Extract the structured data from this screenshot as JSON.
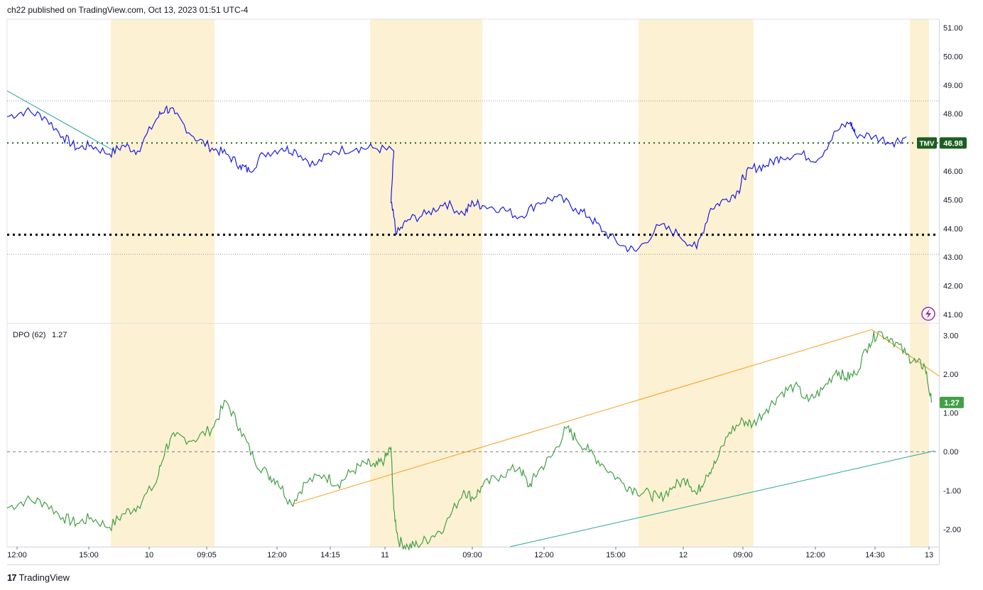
{
  "header": {
    "text": "ch22 published on TradingView.com, Oct 13, 2023 01:51 UTC-4"
  },
  "brand": {
    "logo": "17",
    "name": "TradingView"
  },
  "colors": {
    "price_line": "#1c1ce0",
    "dpo_line": "#43a047",
    "session_band": "#fdf1d3",
    "support_dotted": "#000000",
    "tmv_dotted": "#1b5e20",
    "trend_orange": "#f59c1a",
    "trend_teal": "#26a69a",
    "tmv_badge": "#1b5e20",
    "dpo_badge": "#43a047",
    "bolt_icon": "#9c27b0"
  },
  "icons": {
    "alert": "lightning-bolt-icon"
  },
  "chart_data": [
    {
      "type": "line",
      "panel": "price",
      "ylim": [
        40.7,
        51.3
      ],
      "y_ticks": [
        "51.00",
        "50.00",
        "49.00",
        "48.00",
        "47.00",
        "46.00",
        "45.00",
        "44.00",
        "43.00",
        "42.00",
        "41.00"
      ],
      "x_ticks": [
        "12:00",
        "15:00",
        "10",
        "09:05",
        "12:00",
        "14:15",
        "11",
        "09:00",
        "12:00",
        "15:00",
        "12",
        "09:00",
        "12:00",
        "14:30",
        "13"
      ],
      "grid": false,
      "horizontal_levels": [
        {
          "label": "TMV",
          "value": 46.98,
          "value_label": "46.98",
          "style": "dotted"
        },
        {
          "label": "",
          "value": 43.78,
          "style": "dotted"
        },
        {
          "label": "",
          "value": 48.45,
          "style": "faint-dotted"
        },
        {
          "label": "",
          "value": 43.1,
          "style": "faint-dotted"
        }
      ],
      "trendlines": [
        {
          "color": "teal",
          "x": [
            0,
            0.115
          ],
          "y": [
            48.8,
            46.7
          ]
        }
      ],
      "series": [
        {
          "points_x": [
            0,
            0.02,
            0.04,
            0.06,
            0.075,
            0.09,
            0.11,
            0.125,
            0.14,
            0.16,
            0.17,
            0.18,
            0.2,
            0.22,
            0.235,
            0.25,
            0.26,
            0.275,
            0.295,
            0.31,
            0.33,
            0.35,
            0.375,
            0.395,
            0.415,
            0.412,
            0.418,
            0.43,
            0.45,
            0.47,
            0.49,
            0.5,
            0.51,
            0.53,
            0.55,
            0.57,
            0.59,
            0.61,
            0.625,
            0.64,
            0.66,
            0.675,
            0.7,
            0.72,
            0.74,
            0.755,
            0.77,
            0.785,
            0.79,
            0.8,
            0.815,
            0.83,
            0.85,
            0.87,
            0.89,
            0.905,
            0.91,
            0.93,
            0.95,
            0.965
          ],
          "values": [
            47.9,
            48.1,
            47.9,
            47.2,
            46.8,
            46.9,
            46.6,
            46.9,
            46.7,
            47.8,
            48.2,
            48.0,
            47.2,
            46.8,
            46.6,
            46.2,
            46.0,
            46.6,
            46.8,
            46.7,
            46.2,
            46.7,
            46.8,
            46.8,
            46.7,
            44.9,
            43.8,
            44.3,
            44.5,
            44.9,
            44.5,
            44.9,
            44.8,
            44.7,
            44.4,
            44.9,
            45.1,
            44.7,
            44.4,
            43.9,
            43.4,
            43.2,
            44.1,
            43.8,
            43.3,
            44.7,
            45.0,
            45.3,
            45.8,
            46.1,
            46.2,
            46.5,
            46.6,
            46.4,
            47.4,
            47.7,
            47.3,
            47.2,
            47.0,
            47.2
          ]
        }
      ]
    },
    {
      "type": "line",
      "panel": "indicator",
      "title": "DPO (62)",
      "current_value": "1.27",
      "ylim": [
        -2.45,
        3.3
      ],
      "y_ticks": [
        "3.00",
        "2.00",
        "1.00",
        "0.00",
        "-1.00",
        "-2.00"
      ],
      "zero_line": 0,
      "trendlines": [
        {
          "color": "orange",
          "x": [
            0.307,
            0.928
          ],
          "y": [
            -1.35,
            3.15
          ]
        },
        {
          "color": "orange",
          "x": [
            0.928,
            1.0
          ],
          "y": [
            3.15,
            1.95
          ]
        },
        {
          "color": "teal",
          "x": [
            0.54,
            0.995
          ],
          "y": [
            -2.45,
            0.02
          ]
        }
      ],
      "series": [
        {
          "name": "DPO (62)",
          "points_x": [
            0,
            0.02,
            0.04,
            0.06,
            0.075,
            0.09,
            0.11,
            0.125,
            0.14,
            0.16,
            0.17,
            0.18,
            0.2,
            0.22,
            0.235,
            0.25,
            0.265,
            0.28,
            0.29,
            0.305,
            0.32,
            0.34,
            0.355,
            0.37,
            0.385,
            0.395,
            0.405,
            0.412,
            0.415,
            0.42,
            0.43,
            0.44,
            0.455,
            0.47,
            0.49,
            0.5,
            0.51,
            0.53,
            0.55,
            0.56,
            0.57,
            0.585,
            0.6,
            0.61,
            0.625,
            0.64,
            0.66,
            0.675,
            0.69,
            0.7,
            0.715,
            0.73,
            0.74,
            0.75,
            0.76,
            0.775,
            0.79,
            0.8,
            0.815,
            0.83,
            0.845,
            0.86,
            0.875,
            0.89,
            0.9,
            0.91,
            0.925,
            0.935,
            0.95,
            0.965,
            0.975,
            0.985,
            0.992
          ],
          "values": [
            -1.45,
            -1.25,
            -1.3,
            -1.7,
            -1.85,
            -1.7,
            -1.95,
            -1.6,
            -1.4,
            -0.8,
            0.1,
            0.4,
            0.3,
            0.6,
            1.3,
            0.6,
            -0.2,
            -0.6,
            -0.75,
            -1.35,
            -0.8,
            -0.6,
            -0.85,
            -0.5,
            -0.3,
            -0.4,
            -0.2,
            0.1,
            -1.5,
            -2.3,
            -2.45,
            -2.4,
            -2.2,
            -1.9,
            -1.0,
            -1.2,
            -0.9,
            -0.6,
            -0.4,
            -0.9,
            -0.5,
            -0.1,
            0.6,
            0.35,
            0.0,
            -0.35,
            -0.8,
            -1.0,
            -1.1,
            -1.2,
            -0.9,
            -0.7,
            -1.1,
            -0.6,
            -0.3,
            0.5,
            0.8,
            0.7,
            1.1,
            1.5,
            1.7,
            1.3,
            1.6,
            2.1,
            1.9,
            2.0,
            2.8,
            3.1,
            2.9,
            2.5,
            2.3,
            2.2,
            1.27
          ]
        }
      ]
    }
  ]
}
